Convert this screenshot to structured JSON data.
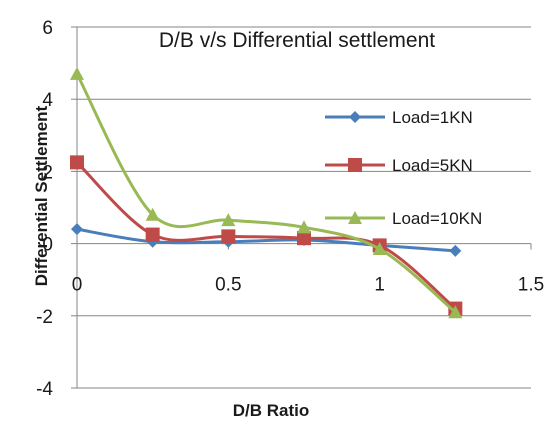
{
  "chart_data": {
    "type": "line",
    "title": "D/B v/s Differential settlement",
    "xlabel": "D/B Ratio",
    "ylabel": "Differential Settlement",
    "xlim": [
      0,
      1.5
    ],
    "ylim": [
      -4,
      6
    ],
    "x_ticks": [
      "0",
      "0.5",
      "1",
      "1.5"
    ],
    "y_ticks": [
      "-4",
      "-2",
      "0",
      "2",
      "4",
      "6"
    ],
    "grid": "horizontal",
    "legend_position": "right",
    "smooth": true,
    "series": [
      {
        "name": "Load=1KN",
        "color": "#4a7ebb",
        "marker": "diamond",
        "x": [
          0,
          0.25,
          0.5,
          0.75,
          1,
          1.25
        ],
        "values": [
          0.4,
          0.05,
          0.05,
          0.1,
          -0.05,
          -0.2
        ]
      },
      {
        "name": "Load=5KN",
        "color": "#be4b48",
        "marker": "square",
        "x": [
          0,
          0.25,
          0.5,
          0.75,
          1,
          1.25
        ],
        "values": [
          2.25,
          0.25,
          0.2,
          0.15,
          -0.05,
          -1.8
        ]
      },
      {
        "name": "Load=10KN",
        "color": "#98b954",
        "marker": "triangle",
        "x": [
          0,
          0.25,
          0.5,
          0.75,
          1,
          1.25
        ],
        "values": [
          4.7,
          0.8,
          0.65,
          0.45,
          -0.15,
          -1.9
        ]
      }
    ]
  }
}
